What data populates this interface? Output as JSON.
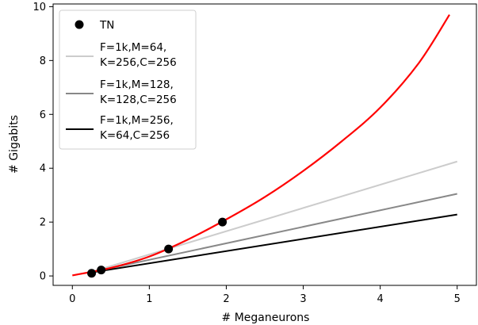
{
  "chart_data": {
    "type": "line",
    "xlabel": "# Meganeurons",
    "ylabel": "# Gigabits",
    "xlim": [
      -0.25,
      5.25
    ],
    "ylim": [
      -0.35,
      10.1
    ],
    "xticks": [
      0,
      1,
      2,
      3,
      4,
      5
    ],
    "yticks": [
      0,
      2,
      4,
      6,
      8,
      10
    ],
    "grid": false,
    "legend_placement": "top-left",
    "series": [
      {
        "name": "TN",
        "kind": "scatter",
        "color": "#000000",
        "x": [
          0.25,
          0.375,
          1.25,
          1.95
        ],
        "y": [
          0.1,
          0.22,
          1.0,
          2.0
        ]
      },
      {
        "name": "F=1k,M=64,\nK=256,C=256",
        "kind": "line",
        "color": "#cccccc",
        "x": [
          0.25,
          5
        ],
        "y": [
          0.15,
          4.25
        ]
      },
      {
        "name": "F=1k,M=128,\nK=128,C=256",
        "kind": "line",
        "color": "#888888",
        "x": [
          0.25,
          5
        ],
        "y": [
          0.14,
          3.05
        ]
      },
      {
        "name": "F=1k,M=256,\nK=64,C=256",
        "kind": "line",
        "color": "#000000",
        "x": [
          0.25,
          5
        ],
        "y": [
          0.13,
          2.28
        ]
      },
      {
        "name": "",
        "kind": "curve",
        "color": "#ff0000",
        "x": [
          0,
          0.5,
          1,
          1.5,
          2,
          2.5,
          3,
          3.5,
          4,
          4.5,
          4.9
        ],
        "y": [
          0.02,
          0.3,
          0.72,
          1.35,
          2.1,
          2.93,
          3.9,
          5.0,
          6.25,
          7.9,
          9.7
        ]
      }
    ]
  }
}
